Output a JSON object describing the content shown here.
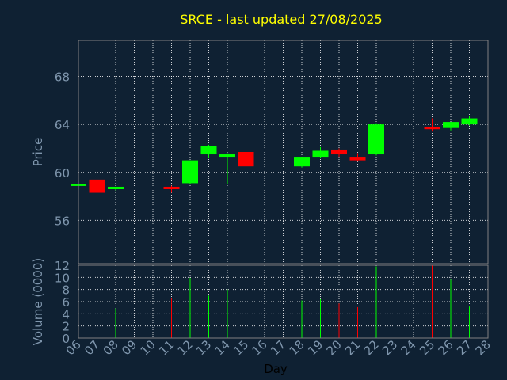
{
  "chart_data": {
    "type": "candlestick",
    "title": "SRCE - last updated 27/08/2025",
    "xlabel": "Day",
    "price_panel": {
      "ylabel": "Price",
      "ylim": [
        52.4,
        71.0
      ],
      "yticks": [
        56,
        60,
        64,
        68
      ],
      "grid": true
    },
    "volume_panel": {
      "ylabel": "Volume (0000)",
      "ylim": [
        0,
        12
      ],
      "yticks": [
        0,
        2,
        4,
        6,
        8,
        10,
        12
      ],
      "grid": true
    },
    "x_ticks": [
      "06",
      "07",
      "08",
      "09",
      "10",
      "11",
      "12",
      "13",
      "14",
      "15",
      "16",
      "17",
      "18",
      "19",
      "20",
      "21",
      "22",
      "23",
      "24",
      "25",
      "26",
      "27",
      "28"
    ],
    "candles": [
      {
        "day": "06",
        "open": 58.9,
        "high": 59.0,
        "low": 58.8,
        "close": 59.0,
        "volume": 0
      },
      {
        "day": "07",
        "open": 59.4,
        "high": 59.4,
        "low": 58.3,
        "close": 58.3,
        "volume": 6.1
      },
      {
        "day": "08",
        "open": 58.6,
        "high": 58.8,
        "low": 58.5,
        "close": 58.8,
        "volume": 4.9
      },
      {
        "day": "11",
        "open": 58.8,
        "high": 58.9,
        "low": 58.3,
        "close": 58.6,
        "volume": 6.5
      },
      {
        "day": "12",
        "open": 59.1,
        "high": 61.0,
        "low": 59.0,
        "close": 61.0,
        "volume": 9.9
      },
      {
        "day": "13",
        "open": 61.5,
        "high": 62.3,
        "low": 61.2,
        "close": 62.2,
        "volume": 7.0
      },
      {
        "day": "14",
        "open": 61.3,
        "high": 61.6,
        "low": 59.0,
        "close": 61.5,
        "volume": 8.0
      },
      {
        "day": "15",
        "open": 61.7,
        "high": 61.8,
        "low": 60.4,
        "close": 60.5,
        "volume": 7.6
      },
      {
        "day": "18",
        "open": 60.5,
        "high": 61.3,
        "low": 60.4,
        "close": 61.3,
        "volume": 6.2
      },
      {
        "day": "19",
        "open": 61.3,
        "high": 62.1,
        "low": 61.2,
        "close": 61.8,
        "volume": 6.4
      },
      {
        "day": "20",
        "open": 61.9,
        "high": 62.0,
        "low": 61.3,
        "close": 61.5,
        "volume": 5.7
      },
      {
        "day": "21",
        "open": 61.3,
        "high": 61.6,
        "low": 60.9,
        "close": 61.0,
        "volume": 5.1
      },
      {
        "day": "22",
        "open": 61.5,
        "high": 64.1,
        "low": 61.4,
        "close": 64.0,
        "volume": 11.8
      },
      {
        "day": "25",
        "open": 63.8,
        "high": 64.5,
        "low": 63.4,
        "close": 63.6,
        "volume": 12.0
      },
      {
        "day": "26",
        "open": 63.7,
        "high": 64.2,
        "low": 63.5,
        "close": 64.2,
        "volume": 9.6
      },
      {
        "day": "27",
        "open": 64.0,
        "high": 64.7,
        "low": 63.9,
        "close": 64.5,
        "volume": 5.2
      }
    ],
    "up_color": "#00ff00",
    "down_color": "#ff0000"
  }
}
